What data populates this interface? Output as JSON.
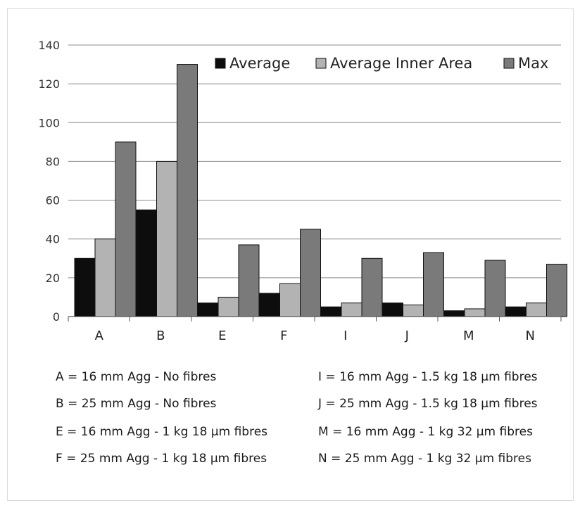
{
  "chart_data": {
    "type": "bar",
    "title": "",
    "xlabel": "",
    "ylabel": "",
    "ylim": [
      0,
      140
    ],
    "yticks": [
      0,
      20,
      40,
      60,
      80,
      100,
      120,
      140
    ],
    "grid": true,
    "legend_position": "top-right",
    "categories": [
      "A",
      "B",
      "E",
      "F",
      "I",
      "J",
      "M",
      "N"
    ],
    "series": [
      {
        "name": "Average",
        "color": "#0d0d0d",
        "values": [
          30,
          55,
          7,
          12,
          5,
          7,
          3,
          5
        ]
      },
      {
        "name": "Average Inner Area",
        "color": "#b3b3b3",
        "values": [
          40,
          80,
          10,
          17,
          7,
          6,
          4,
          7
        ]
      },
      {
        "name": "Max",
        "color": "#7a7a7a",
        "values": [
          90,
          130,
          37,
          45,
          30,
          33,
          29,
          27
        ]
      }
    ]
  },
  "notes": {
    "left": [
      "A = 16 mm Agg - No fibres",
      "B = 25 mm Agg - No fibres",
      "E = 16 mm Agg - 1 kg 18 µm fibres",
      "F = 25 mm Agg - 1 kg 18 µm fibres"
    ],
    "right": [
      "I = 16 mm Agg - 1.5 kg 18 µm fibres",
      "J = 25 mm Agg - 1.5 kg 18 µm fibres",
      "M = 16 mm Agg - 1 kg  32 µm fibres",
      "N = 25 mm Agg - 1 kg 32 µm fibres"
    ]
  }
}
